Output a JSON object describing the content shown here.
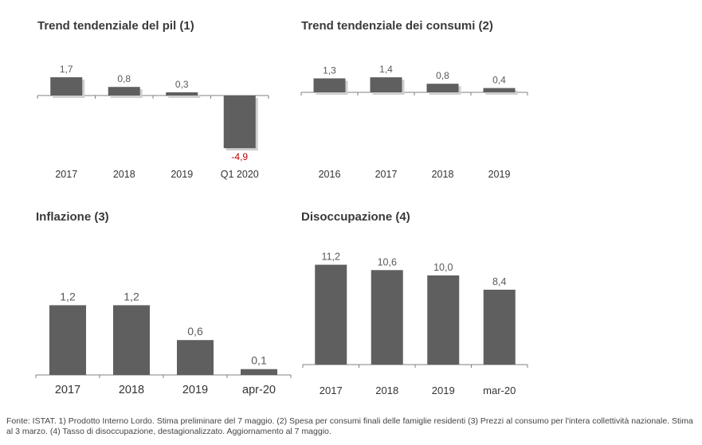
{
  "colors": {
    "bar": "#5f5f5f",
    "negative_label": "#c00000",
    "axis": "#808080",
    "label": "#595959"
  },
  "chart_data": [
    {
      "type": "bar",
      "title": "Trend tendenziale del pil  (1)",
      "categories": [
        "2017",
        "2018",
        "2019",
        "Q1 2020"
      ],
      "values": [
        1.7,
        0.8,
        0.3,
        -4.9
      ],
      "value_labels": [
        "1,7",
        "0,8",
        "0,3",
        "-4,9"
      ],
      "ylim": [
        -5,
        2
      ],
      "grid": false,
      "legend": "none"
    },
    {
      "type": "bar",
      "title": "Trend tendenziale dei consumi (2)",
      "categories": [
        "2016",
        "2017",
        "2018",
        "2019"
      ],
      "values": [
        1.3,
        1.4,
        0.8,
        0.4
      ],
      "value_labels": [
        "1,3",
        "1,4",
        "0,8",
        "0,4"
      ],
      "ylim": [
        0,
        2
      ],
      "grid": false,
      "legend": "none"
    },
    {
      "type": "bar",
      "title": "Inflazione (3)",
      "categories": [
        "2017",
        "2018",
        "2019",
        "apr-20"
      ],
      "values": [
        1.2,
        1.2,
        0.6,
        0.1
      ],
      "value_labels": [
        "1,2",
        "1,2",
        "0,6",
        "0,1"
      ],
      "ylim": [
        0,
        1.5
      ],
      "grid": false,
      "legend": "none"
    },
    {
      "type": "bar",
      "title": "Disoccupazione (4)",
      "categories": [
        "2017",
        "2018",
        "2019",
        "mar-20"
      ],
      "values": [
        11.2,
        10.6,
        10.0,
        8.4
      ],
      "value_labels": [
        "11,2",
        "10,6",
        "10,0",
        "8,4"
      ],
      "ylim": [
        0,
        12
      ],
      "grid": false,
      "legend": "none"
    }
  ],
  "footnote": "Fonte: ISTAT.  1)  Prodotto Interno Lordo. Stima preliminare del 7 maggio. (2) Spesa per consumi finali delle famiglie residenti (3) Prezzi  al consumo per l'intera collettività nazionale. Stima al 3 marzo. (4) Tasso di disoccupazione, destagionalizzato. Aggiornamento al 7 maggio."
}
